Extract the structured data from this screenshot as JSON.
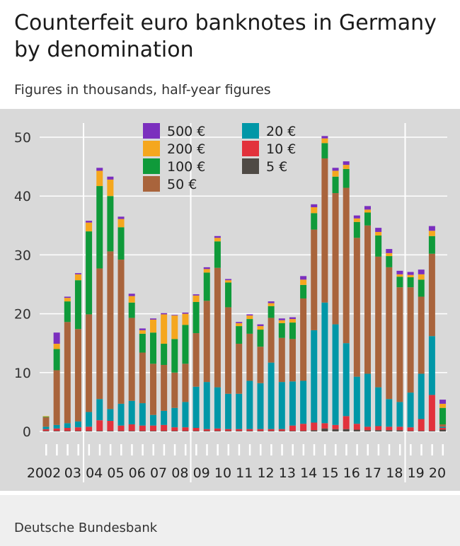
{
  "header": {
    "title": "Counterfeit euro banknotes in Germany by denomination",
    "subtitle": "Figures in thousands, half-year figures"
  },
  "footer": {
    "source": "Deutsche Bundesbank"
  },
  "colors": {
    "500 €": "#7b2fbe",
    "200 €": "#f5a71e",
    "100 €": "#0f9a3a",
    "50 €": "#a9643c",
    "20 €": "#0097a7",
    "10 €": "#e2323c",
    "5 €": "#4f4a45",
    "panel": "#d9d9d9",
    "grid": "#ffffff"
  },
  "chart_data": {
    "type": "bar",
    "stacked": true,
    "ylim": [
      0,
      50
    ],
    "yticks": [
      0,
      10,
      20,
      30,
      40,
      50
    ],
    "grid": "horizontal white lines",
    "legend_position": "top-center",
    "year_labels": [
      "2002",
      "03",
      "04",
      "05",
      "06",
      "07",
      "08",
      "09",
      "10",
      "11",
      "12",
      "13",
      "14",
      "15",
      "16",
      "17",
      "18",
      "19",
      "20"
    ],
    "legend": [
      {
        "label": "500 €",
        "series": "500 €"
      },
      {
        "label": "200 €",
        "series": "200 €"
      },
      {
        "label": "100 €",
        "series": "100 €"
      },
      {
        "label": "50 €",
        "series": "50 €"
      },
      {
        "label": "20 €",
        "series": "20 €"
      },
      {
        "label": "10 €",
        "series": "10 €"
      },
      {
        "label": "5 €",
        "series": "5 €"
      }
    ],
    "categories": [
      "2002 H1",
      "2002 H2",
      "2003 H1",
      "2003 H2",
      "2004 H1",
      "2004 H2",
      "2005 H1",
      "2005 H2",
      "2006 H1",
      "2006 H2",
      "2007 H1",
      "2007 H2",
      "2008 H1",
      "2008 H2",
      "2009 H1",
      "2009 H2",
      "2010 H1",
      "2010 H2",
      "2011 H1",
      "2011 H2",
      "2012 H1",
      "2012 H2",
      "2013 H1",
      "2013 H2",
      "2014 H1",
      "2014 H2",
      "2015 H1",
      "2015 H2",
      "2016 H1",
      "2016 H2",
      "2017 H1",
      "2017 H2",
      "2018 H1",
      "2018 H2",
      "2019 H1",
      "2019 H2",
      "2020 H1",
      "2020 H2"
    ],
    "series": [
      {
        "name": "5 €",
        "values": [
          0.1,
          0.1,
          0.1,
          0.1,
          0.1,
          0.1,
          0.1,
          0.1,
          0.1,
          0.1,
          0.1,
          0.1,
          0.1,
          0.1,
          0.1,
          0.1,
          0.1,
          0.1,
          0.1,
          0.1,
          0.1,
          0.1,
          0.1,
          0.1,
          0.1,
          0.2,
          0.5,
          0.4,
          0.4,
          0.3,
          0.2,
          0.2,
          0.2,
          0.2,
          0.1,
          0.1,
          0.1,
          0.3
        ]
      },
      {
        "name": "10 €",
        "values": [
          0.3,
          0.4,
          0.5,
          0.6,
          0.7,
          1.8,
          1.7,
          0.9,
          1.1,
          0.9,
          0.9,
          1.0,
          0.6,
          0.6,
          0.5,
          0.3,
          0.4,
          0.3,
          0.3,
          0.3,
          0.3,
          0.3,
          0.3,
          0.9,
          1.2,
          1.3,
          0.9,
          0.7,
          2.2,
          1.0,
          0.6,
          0.7,
          0.6,
          0.6,
          0.6,
          2.0,
          6.1,
          0.3
        ]
      },
      {
        "name": "20 €",
        "values": [
          0.4,
          0.6,
          0.8,
          1.0,
          2.5,
          3.6,
          2.0,
          3.7,
          4.0,
          3.8,
          1.8,
          2.4,
          3.3,
          4.3,
          7.0,
          8.0,
          7.0,
          6.0,
          6.0,
          8.2,
          7.8,
          11.3,
          8.0,
          7.5,
          7.3,
          15.7,
          20.5,
          17.1,
          12.4,
          8.0,
          9.0,
          6.6,
          4.7,
          4.2,
          5.9,
          7.7,
          10.0,
          0.2
        ]
      },
      {
        "name": "50 €",
        "values": [
          1.6,
          9.3,
          17.2,
          15.7,
          16.6,
          22.2,
          26.8,
          24.5,
          14.1,
          8.6,
          8.7,
          7.8,
          6.0,
          6.5,
          9.1,
          13.8,
          20.3,
          14.7,
          8.5,
          8.0,
          6.2,
          7.6,
          7.5,
          7.2,
          14.0,
          17.1,
          24.5,
          22.3,
          26.4,
          23.6,
          25.2,
          22.2,
          22.4,
          19.5,
          17.9,
          13.1,
          14.0,
          0.4
        ]
      },
      {
        "name": "100 €",
        "values": [
          0.1,
          3.6,
          3.5,
          8.3,
          14.1,
          14.0,
          9.4,
          5.5,
          2.6,
          3.2,
          5.3,
          3.6,
          5.7,
          6.6,
          5.3,
          4.8,
          4.5,
          4.2,
          3.0,
          2.5,
          2.9,
          2.0,
          2.5,
          2.8,
          2.3,
          2.8,
          2.6,
          2.8,
          3.2,
          2.7,
          2.2,
          3.6,
          1.9,
          1.8,
          1.7,
          2.9,
          3.0,
          2.8
        ]
      },
      {
        "name": "200 €",
        "values": [
          0.1,
          0.9,
          0.6,
          1.0,
          1.5,
          2.6,
          2.8,
          1.4,
          1.1,
          0.6,
          2.2,
          5.0,
          4.0,
          1.9,
          1.1,
          0.6,
          0.6,
          0.4,
          0.5,
          0.6,
          0.6,
          0.5,
          0.5,
          0.6,
          0.9,
          1.0,
          0.8,
          1.0,
          0.7,
          0.6,
          0.5,
          0.6,
          0.5,
          0.4,
          0.4,
          0.9,
          0.9,
          0.7
        ]
      },
      {
        "name": "500 €",
        "values": [
          0.0,
          1.9,
          0.2,
          0.2,
          0.3,
          0.5,
          0.5,
          0.4,
          0.4,
          0.3,
          0.2,
          0.2,
          0.1,
          0.2,
          0.2,
          0.3,
          0.3,
          0.2,
          0.2,
          0.2,
          0.3,
          0.3,
          0.3,
          0.3,
          0.6,
          0.5,
          0.4,
          0.5,
          0.6,
          0.5,
          0.6,
          0.7,
          0.7,
          0.6,
          0.5,
          0.8,
          0.8,
          0.7
        ]
      }
    ]
  }
}
